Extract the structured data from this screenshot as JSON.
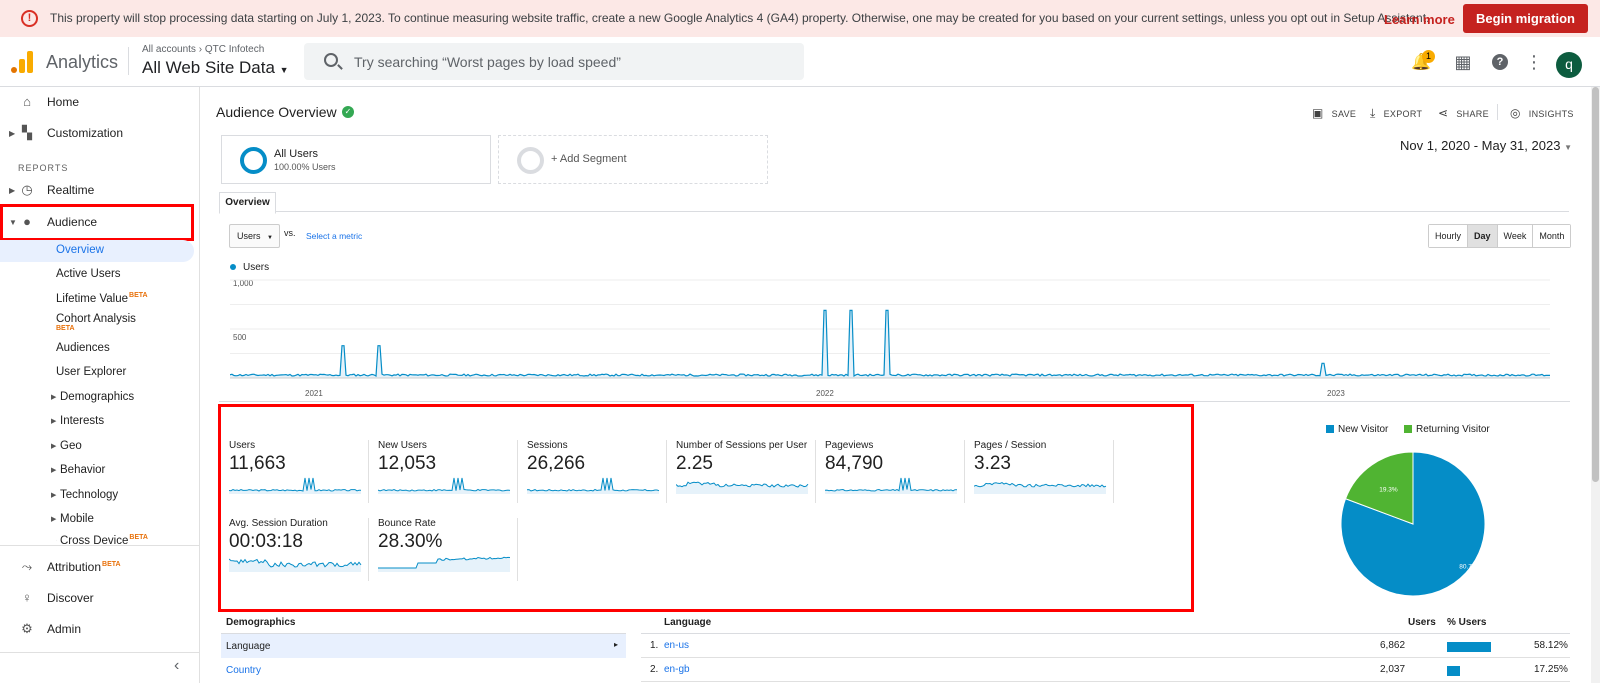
{
  "banner": {
    "message": "This property will stop processing data starting on July 1, 2023. To continue measuring website traffic, create a new Google Analytics 4 (GA4) property. Otherwise, one may be created for you based on your current settings, unless you opt out in Setup Assistant.",
    "learn_more": "Learn more",
    "begin_migration": "Begin migration"
  },
  "header": {
    "app_name": "Analytics",
    "breadcrumb_root": "All accounts",
    "breadcrumb_account": "QTC Infotech",
    "view_name": "All Web Site Data",
    "search_placeholder": "Try searching “Worst pages by load speed”",
    "notification_count": "1",
    "avatar_letter": "q"
  },
  "sidebar": {
    "home": "Home",
    "customization": "Customization",
    "reports_header": "REPORTS",
    "realtime": "Realtime",
    "audience": "Audience",
    "audience_items": [
      "Overview",
      "Active Users",
      "Lifetime Value",
      "Cohort Analysis",
      "Audiences",
      "User Explorer",
      "Demographics",
      "Interests",
      "Geo",
      "Behavior",
      "Technology",
      "Mobile",
      "Cross Device"
    ],
    "beta": "BETA",
    "attribution": "Attribution",
    "discover": "Discover",
    "admin": "Admin"
  },
  "main": {
    "title": "Audience Overview",
    "actions": {
      "save": "SAVE",
      "export": "EXPORT",
      "share": "SHARE",
      "insights": "INSIGHTS"
    },
    "segments": {
      "all_users": "All Users",
      "all_users_pct": "100.00% Users",
      "add_segment": "+ Add Segment"
    },
    "date_range": "Nov 1, 2020 - May 31, 2023",
    "tab": "Overview",
    "metric_select": "Users",
    "vs": "vs.",
    "select_metric": "Select a metric",
    "granularity": [
      "Hourly",
      "Day",
      "Week",
      "Month"
    ],
    "granularity_selected": "Day"
  },
  "chart_data": [
    {
      "type": "line",
      "series": [
        {
          "name": "Users",
          "color": "#058dc7"
        }
      ],
      "ylim": [
        0,
        1000
      ],
      "yticks": [
        "1,000",
        "500"
      ],
      "xticks": [
        "2021",
        "2022",
        "2023"
      ],
      "spikes": [
        {
          "date": "2021-01-20",
          "value": 330
        },
        {
          "date": "2021-02-15",
          "value": 330
        },
        {
          "date": "2021-12-30",
          "value": 690
        },
        {
          "date": "2022-01-17",
          "value": 690
        },
        {
          "date": "2022-02-12",
          "value": 690
        },
        {
          "date": "2022-12-20",
          "value": 150
        }
      ],
      "baseline": 20
    },
    {
      "type": "pie",
      "labels": [
        "New Visitor",
        "Returning Visitor"
      ],
      "values": [
        80.7,
        19.3
      ],
      "value_labels": [
        "80.7%",
        "19.3%"
      ],
      "colors": [
        "#058dc7",
        "#50b432"
      ]
    }
  ],
  "metrics": [
    {
      "label": "Users",
      "value": "11,663"
    },
    {
      "label": "New Users",
      "value": "12,053"
    },
    {
      "label": "Sessions",
      "value": "26,266"
    },
    {
      "label": "Number of Sessions per User",
      "value": "2.25"
    },
    {
      "label": "Pageviews",
      "value": "84,790"
    },
    {
      "label": "Pages / Session",
      "value": "3.23"
    },
    {
      "label": "Avg. Session Duration",
      "value": "00:03:18"
    },
    {
      "label": "Bounce Rate",
      "value": "28.30%"
    }
  ],
  "demographics": {
    "header": "Demographics",
    "rows": [
      "Language",
      "Country"
    ]
  },
  "language_table": {
    "header": "Language",
    "col_users": "Users",
    "col_pct": "% Users",
    "rows": [
      {
        "rank": "1.",
        "lang": "en-us",
        "users": "6,862",
        "pct": "58.12%",
        "bar": 0.5812
      },
      {
        "rank": "2.",
        "lang": "en-gb",
        "users": "2,037",
        "pct": "17.25%",
        "bar": 0.1725
      }
    ]
  }
}
